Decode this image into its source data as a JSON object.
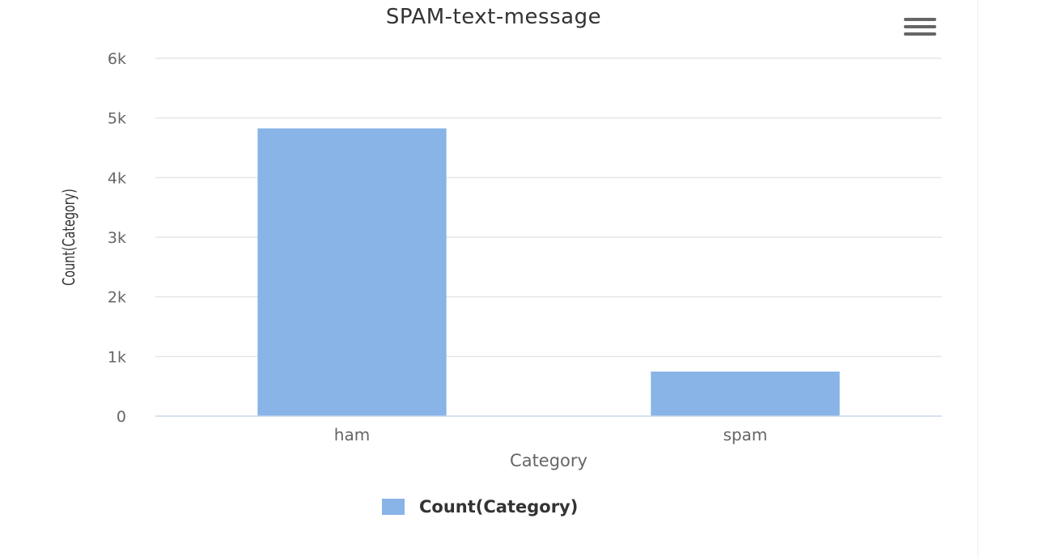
{
  "colors": {
    "series": "#88b4e7",
    "grid": "#e6e6e6",
    "axis": "#ccd6eb",
    "text": "#666666",
    "menu": "#666666"
  },
  "menu": {
    "icon": "hamburger-menu-icon"
  },
  "legend": {
    "label": "Count(Category)"
  },
  "chart_data": {
    "type": "bar",
    "title": "SPAM-text-message",
    "xlabel": "Category",
    "ylabel": "Count(Category)",
    "categories": [
      "ham",
      "spam"
    ],
    "series": [
      {
        "name": "Count(Category)",
        "values": [
          4825,
          747
        ]
      }
    ],
    "ylim": [
      0,
      6000
    ],
    "yticks": [
      {
        "value": 0,
        "label": "0"
      },
      {
        "value": 1000,
        "label": "1k"
      },
      {
        "value": 2000,
        "label": "2k"
      },
      {
        "value": 3000,
        "label": "3k"
      },
      {
        "value": 4000,
        "label": "4k"
      },
      {
        "value": 5000,
        "label": "5k"
      },
      {
        "value": 6000,
        "label": "6k"
      }
    ],
    "grid": true,
    "legend_position": "bottom-center"
  }
}
